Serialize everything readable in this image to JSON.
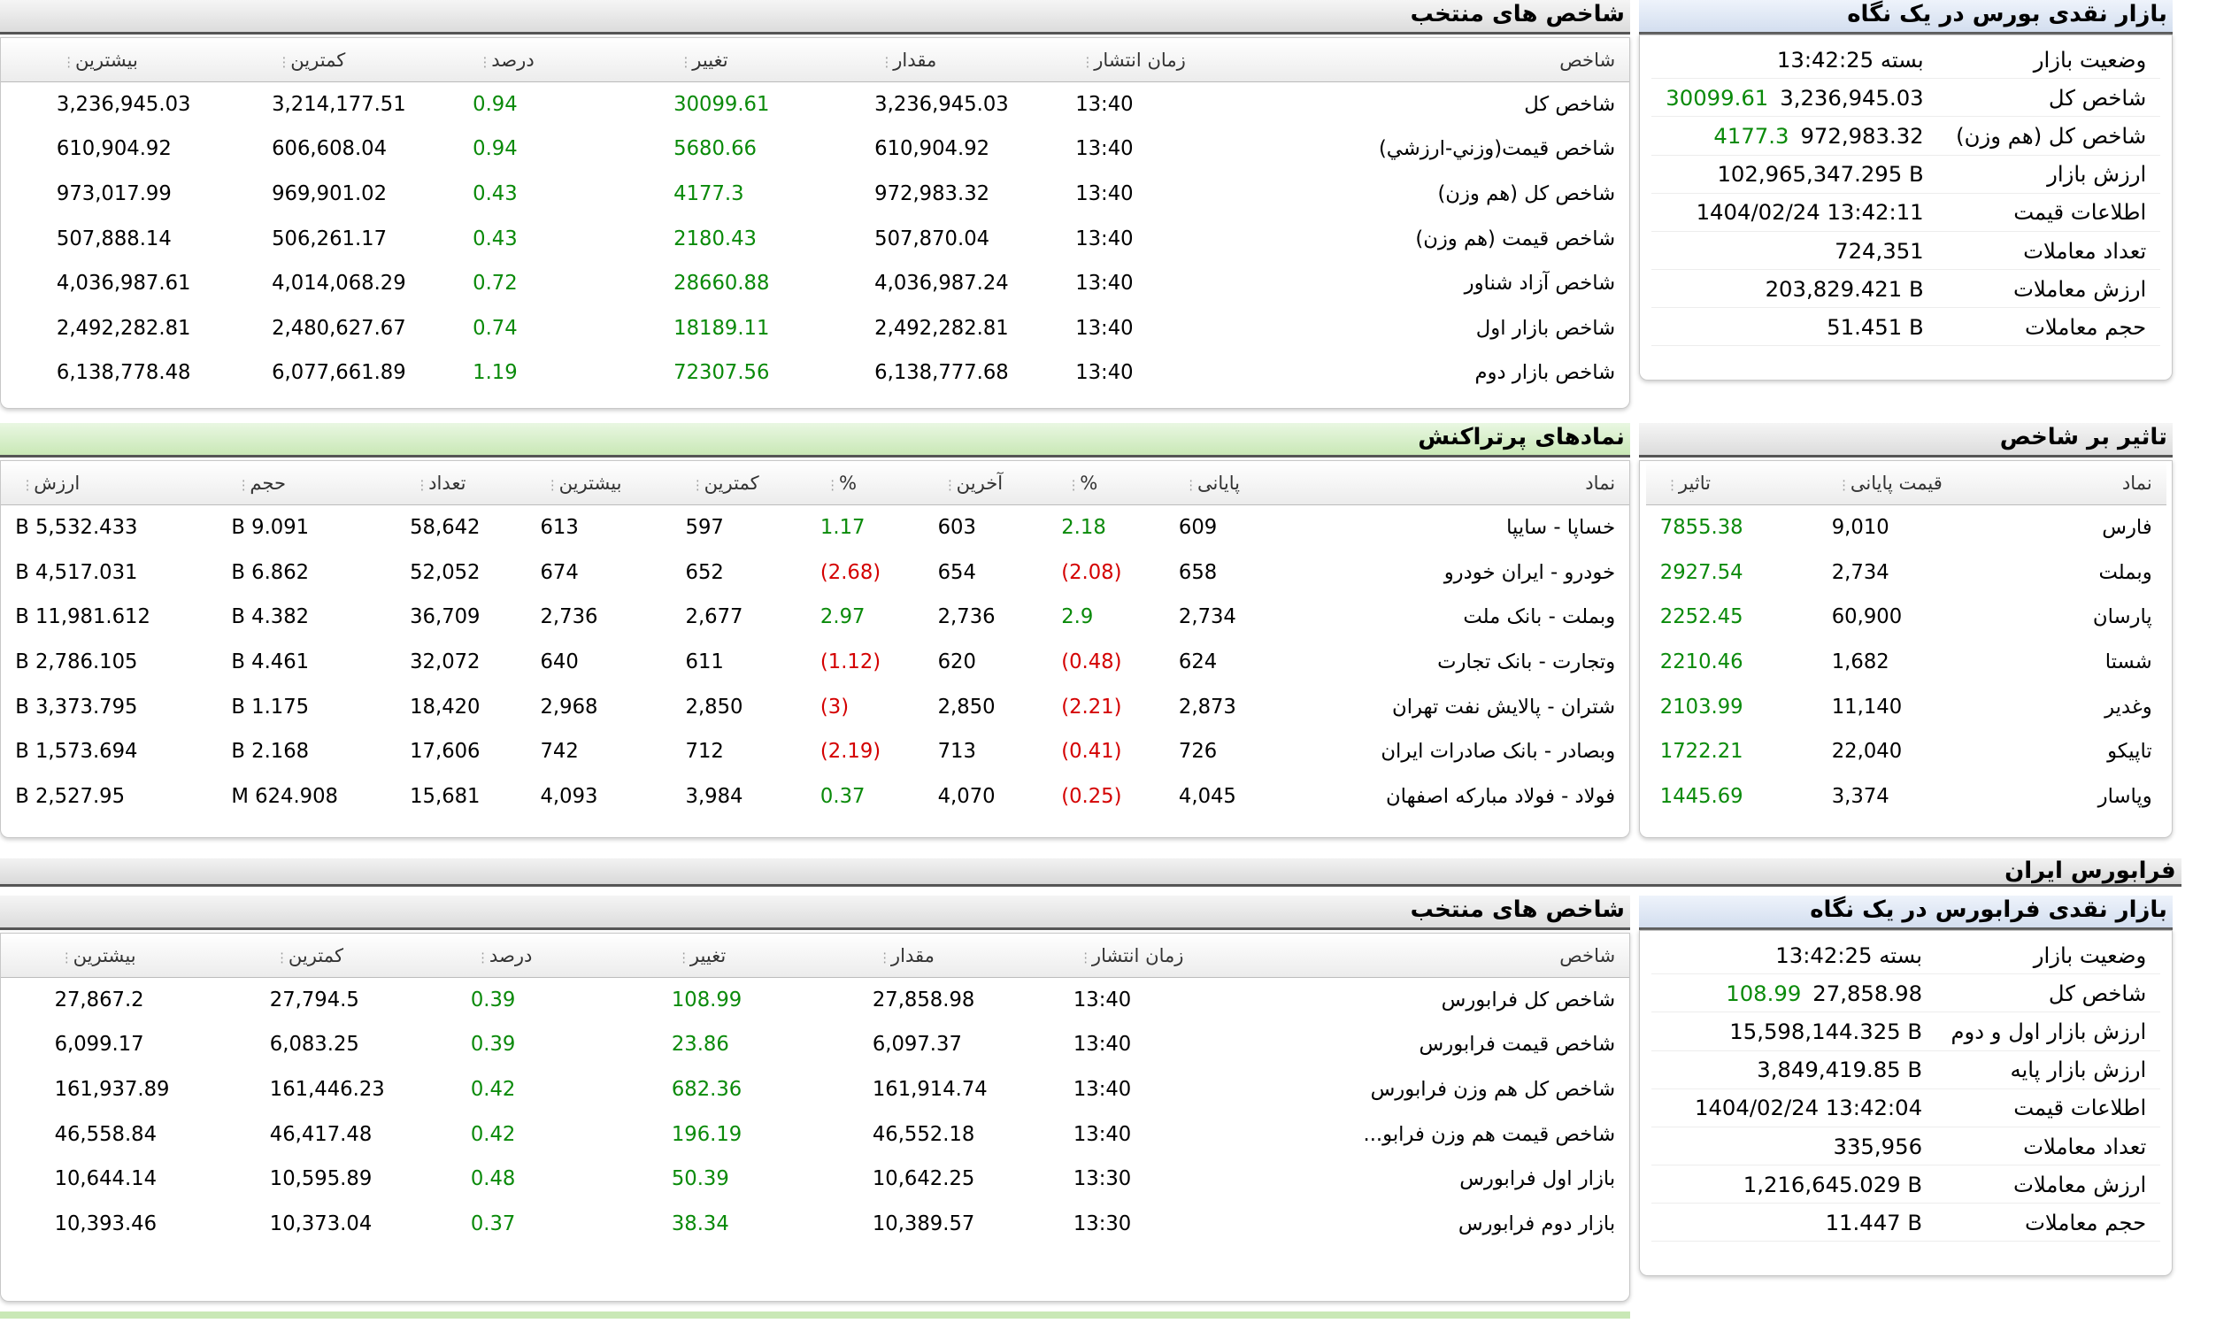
{
  "bourse_glance": {
    "title": "بازار نقدی بورس در یک نگاه",
    "rows": [
      {
        "k": "وضعیت بازار",
        "v": "بسته 13:42:25",
        "extra": ""
      },
      {
        "k": "شاخص کل",
        "v": "3,236,945.03",
        "extra": "30099.61"
      },
      {
        "k": "شاخص کل (هم وزن)",
        "v": "972,983.32",
        "extra": "4177.3"
      },
      {
        "k": "ارزش بازار",
        "v": "102,965,347.295 B",
        "extra": ""
      },
      {
        "k": "اطلاعات قیمت",
        "v": "1404/02/24 13:42:11",
        "extra": ""
      },
      {
        "k": "تعداد معاملات",
        "v": "724,351",
        "extra": ""
      },
      {
        "k": "ارزش معاملات",
        "v": "203,829.421 B",
        "extra": ""
      },
      {
        "k": "حجم معاملات",
        "v": "51.451 B",
        "extra": ""
      }
    ]
  },
  "bourse_indices": {
    "title": "شاخص های منتخب",
    "headers": [
      "شاخص",
      "زمان انتشار",
      "مقدار",
      "تغییر",
      "درصد",
      "کمترین",
      "بیشترین"
    ],
    "rows": [
      [
        "شاخص کل",
        "13:40",
        "3,236,945.03",
        "30099.61",
        "0.94",
        "3,214,177.51",
        "3,236,945.03"
      ],
      [
        "شاخص قیمت(وزني-ارزشي)",
        "13:40",
        "610,904.92",
        "5680.66",
        "0.94",
        "606,608.04",
        "610,904.92"
      ],
      [
        "شاخص کل (هم وزن)",
        "13:40",
        "972,983.32",
        "4177.3",
        "0.43",
        "969,901.02",
        "973,017.99"
      ],
      [
        "شاخص قیمت (هم وزن)",
        "13:40",
        "507,870.04",
        "2180.43",
        "0.43",
        "506,261.17",
        "507,888.14"
      ],
      [
        "شاخص آزاد شناور",
        "13:40",
        "4,036,987.24",
        "28660.88",
        "0.72",
        "4,014,068.29",
        "4,036,987.61"
      ],
      [
        "شاخص بازار اول",
        "13:40",
        "2,492,282.81",
        "18189.11",
        "0.74",
        "2,480,627.67",
        "2,492,282.81"
      ],
      [
        "شاخص بازار دوم",
        "13:40",
        "6,138,777.68",
        "72307.56",
        "1.19",
        "6,077,661.89",
        "6,138,778.48"
      ]
    ]
  },
  "impact": {
    "title": "تاثیر بر شاخص",
    "headers": [
      "نماد",
      "قیمت پایانی",
      "تاثیر"
    ],
    "rows": [
      [
        "فارس",
        "9,010",
        "7855.38"
      ],
      [
        "وبملت",
        "2,734",
        "2927.54"
      ],
      [
        "پارسان",
        "60,900",
        "2252.45"
      ],
      [
        "شستا",
        "1,682",
        "2210.46"
      ],
      [
        "وغدیر",
        "11,140",
        "2103.99"
      ],
      [
        "تاپیکو",
        "22,040",
        "1722.21"
      ],
      [
        "وپاسار",
        "3,374",
        "1445.69"
      ]
    ]
  },
  "active": {
    "title": "نمادهای پرتراکنش",
    "headers": [
      "نماد",
      "پایانی",
      "%",
      "آخرین",
      "%",
      "کمترین",
      "بیشترین",
      "تعداد",
      "حجم",
      "ارزش"
    ],
    "rows": [
      [
        "خساپا - سایپا",
        "609",
        "2.18",
        "603",
        "1.17",
        "597",
        "613",
        "58,642",
        "9.091 B",
        "5,532.433 B"
      ],
      [
        "خودرو - ایران خودرو",
        "658",
        "(2.08)",
        "654",
        "(2.68)",
        "652",
        "674",
        "52,052",
        "6.862 B",
        "4,517.031 B"
      ],
      [
        "وبملت - بانک ملت",
        "2,734",
        "2.9",
        "2,736",
        "2.97",
        "2,677",
        "2,736",
        "36,709",
        "4.382 B",
        "11,981.612 B"
      ],
      [
        "وتجارت - بانک تجارت",
        "624",
        "(0.48)",
        "620",
        "(1.12)",
        "611",
        "640",
        "32,072",
        "4.461 B",
        "2,786.105 B"
      ],
      [
        "شتران - پالایش نفت تهران",
        "2,873",
        "(2.21)",
        "2,850",
        "(3)",
        "2,850",
        "2,968",
        "18,420",
        "1.175 B",
        "3,373.795 B"
      ],
      [
        "وبصادر - بانک صادرات ایران",
        "726",
        "(0.41)",
        "713",
        "(2.19)",
        "712",
        "742",
        "17,606",
        "2.168 B",
        "1,573.694 B"
      ],
      [
        "فولاد - فولاد مبارکه اصفهان",
        "4,045",
        "(0.25)",
        "4,070",
        "0.37",
        "3,984",
        "4,093",
        "15,681",
        "624.908 M",
        "2,527.95 B"
      ]
    ]
  },
  "fara_section": "فرابورس ایران",
  "fara_glance": {
    "title": "بازار نقدی فرابورس در یک نگاه",
    "rows": [
      {
        "k": "وضعیت بازار",
        "v": "بسته 13:42:25",
        "extra": ""
      },
      {
        "k": "شاخص کل",
        "v": "27,858.98",
        "extra": "108.99"
      },
      {
        "k": "ارزش بازار اول و دوم",
        "v": "15,598,144.325 B",
        "extra": ""
      },
      {
        "k": "ارزش بازار پایه",
        "v": "3,849,419.85 B",
        "extra": ""
      },
      {
        "k": "اطلاعات قیمت",
        "v": "1404/02/24 13:42:04",
        "extra": ""
      },
      {
        "k": "تعداد معاملات",
        "v": "335,956",
        "extra": ""
      },
      {
        "k": "ارزش معاملات",
        "v": "1,216,645.029 B",
        "extra": ""
      },
      {
        "k": "حجم معاملات",
        "v": "11.447 B",
        "extra": ""
      }
    ]
  },
  "fara_indices": {
    "title": "شاخص های منتخب",
    "headers": [
      "شاخص",
      "زمان انتشار",
      "مقدار",
      "تغییر",
      "درصد",
      "کمترین",
      "بیشترین"
    ],
    "rows": [
      [
        "شاخص کل فرابورس",
        "13:40",
        "27,858.98",
        "108.99",
        "0.39",
        "27,794.5",
        "27,867.2"
      ],
      [
        "شاخص قیمت فرابورس",
        "13:40",
        "6,097.37",
        "23.86",
        "0.39",
        "6,083.25",
        "6,099.17"
      ],
      [
        "شاخص کل هم وزن فرابورس",
        "13:40",
        "161,914.74",
        "682.36",
        "0.42",
        "161,446.23",
        "161,937.89"
      ],
      [
        "شاخص قیمت هم وزن فرابو...",
        "13:40",
        "46,552.18",
        "196.19",
        "0.42",
        "46,417.48",
        "46,558.84"
      ],
      [
        "بازار اول فرابورس",
        "13:30",
        "10,642.25",
        "50.39",
        "0.48",
        "10,595.89",
        "10,644.14"
      ],
      [
        "بازار دوم فرابورس",
        "13:30",
        "10,389.57",
        "38.34",
        "0.37",
        "10,373.04",
        "10,393.46"
      ]
    ]
  },
  "colors": {
    "positive": "#0a8a0a",
    "negative": "#d40000"
  }
}
